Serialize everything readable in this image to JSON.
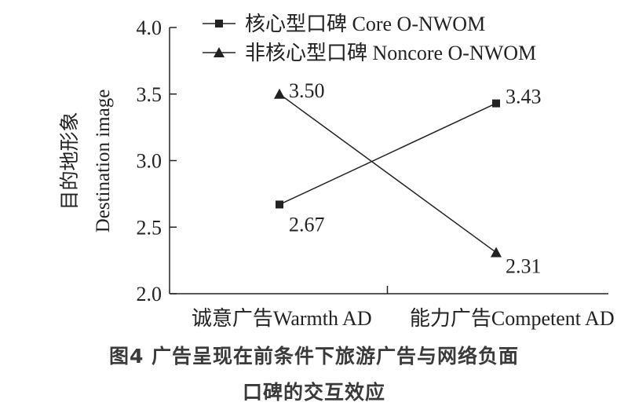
{
  "chart_data": {
    "type": "line",
    "title": "",
    "xlabel": "",
    "ylabel_lines": [
      "目的地形象",
      "Destination image"
    ],
    "categories": [
      "诚意广告Warmth AD",
      "能力广告Competent AD"
    ],
    "ylim": [
      2.0,
      4.0
    ],
    "yticks": [
      "2.0",
      "2.5",
      "3.0",
      "3.5",
      "4.0"
    ],
    "grid": false,
    "legend_position": "top",
    "series": [
      {
        "name": "核心型口碑 Core O-NWOM",
        "marker": "square",
        "values": [
          2.67,
          3.43
        ],
        "labels": [
          "2.67",
          "3.43"
        ]
      },
      {
        "name": "非核心型口碑 Noncore O-NWOM",
        "marker": "triangle",
        "values": [
          3.5,
          2.31
        ],
        "labels": [
          "3.50",
          "2.31"
        ]
      }
    ]
  },
  "caption": {
    "line1": "图4  广告呈现在前条件下旅游广告与网络负面",
    "line2": "口碑的交互效应"
  },
  "colors": {
    "ink": "#222222",
    "caption": "#3a3a3a"
  }
}
